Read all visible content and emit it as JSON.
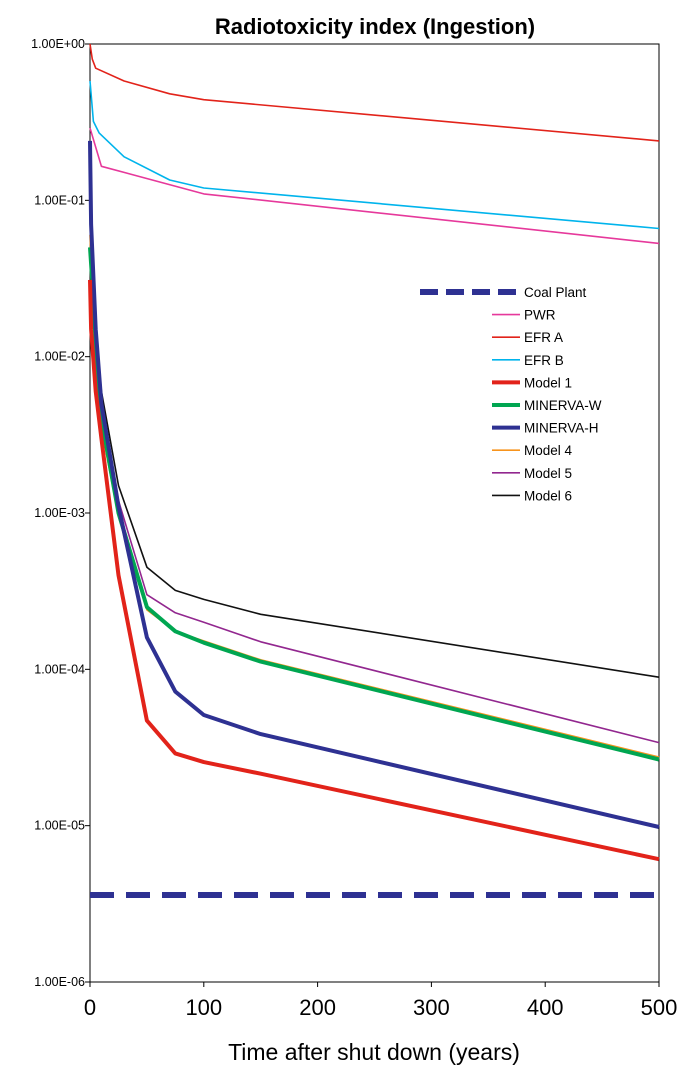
{
  "chart_data": {
    "type": "line",
    "title": "Radiotoxicity index (Ingestion)",
    "xlabel": "Time after shut down (years)",
    "ylabel": "",
    "y_scale": "log",
    "xlim": [
      0,
      500
    ],
    "ylim": [
      1e-06,
      1
    ],
    "x_ticks": [
      0,
      100,
      200,
      300,
      400,
      500
    ],
    "y_ticks": [
      1,
      0.1,
      0.01,
      0.001,
      0.0001,
      1e-05,
      1e-06
    ],
    "y_tick_labels": [
      "1.00E+00",
      "1.00E-01",
      "1.00E-02",
      "1.00E-03",
      "1.00E-04",
      "1.00E-05",
      "1.00E-06"
    ],
    "grid": false,
    "legend_position": "right",
    "series": [
      {
        "name": "Coal Plant",
        "color": "#2E3192",
        "style": "dashed-thick",
        "x": [
          0,
          500
        ],
        "y": [
          3.6e-06,
          3.6e-06
        ]
      },
      {
        "name": "PWR",
        "color": "#E6399B",
        "style": "thin",
        "x": [
          0,
          10,
          100,
          500
        ],
        "y": [
          0.29,
          0.165,
          0.11,
          0.053
        ]
      },
      {
        "name": "EFR A",
        "color": "#E2231A",
        "style": "thin",
        "x": [
          0,
          2,
          5,
          30,
          70,
          100,
          500
        ],
        "y": [
          1.0,
          0.8,
          0.7,
          0.58,
          0.48,
          0.44,
          0.24
        ]
      },
      {
        "name": "EFR B",
        "color": "#00B4EC",
        "style": "thin",
        "x": [
          0,
          3,
          8,
          30,
          70,
          100,
          500
        ],
        "y": [
          0.58,
          0.32,
          0.27,
          0.19,
          0.135,
          0.12,
          0.066
        ]
      },
      {
        "name": "Model 1",
        "color": "#E2231A",
        "style": "thick",
        "x": [
          0,
          1,
          5,
          10,
          25,
          50,
          75,
          100,
          150,
          500
        ],
        "y": [
          0.031,
          0.015,
          0.006,
          0.003,
          0.0004,
          4.7e-05,
          2.9e-05,
          2.55e-05,
          2.15e-05,
          6.1e-06
        ]
      },
      {
        "name": "MINERVA-W",
        "color": "#00A651",
        "style": "thick",
        "x": [
          0,
          2,
          5,
          10,
          25,
          50,
          75,
          100,
          150,
          500
        ],
        "y": [
          0.05,
          0.03,
          0.012,
          0.004,
          0.001,
          0.00025,
          0.000175,
          0.000148,
          0.000112,
          2.65e-05
        ]
      },
      {
        "name": "MINERVA-H",
        "color": "#2E3192",
        "style": "thick",
        "x": [
          0,
          1,
          5,
          10,
          25,
          50,
          75,
          100,
          150,
          500
        ],
        "y": [
          0.24,
          0.07,
          0.015,
          0.005,
          0.0011,
          0.00016,
          7.2e-05,
          5.1e-05,
          3.85e-05,
          9.8e-06
        ]
      },
      {
        "name": "Model 4",
        "color": "#F7941D",
        "style": "thin",
        "x": [
          0,
          2,
          5,
          10,
          25,
          50,
          75,
          100,
          150,
          500
        ],
        "y": [
          0.06,
          0.025,
          0.01,
          0.0035,
          0.00095,
          0.00024,
          0.000175,
          0.000152,
          0.000115,
          2.75e-05
        ]
      },
      {
        "name": "Model 5",
        "color": "#92278F",
        "style": "thin",
        "x": [
          0,
          2,
          5,
          10,
          25,
          50,
          75,
          100,
          150,
          500
        ],
        "y": [
          0.1,
          0.04,
          0.015,
          0.005,
          0.0012,
          0.0003,
          0.00023,
          0.0002,
          0.00015,
          3.4e-05
        ]
      },
      {
        "name": "Model 6",
        "color": "#111111",
        "style": "thin",
        "x": [
          0,
          2,
          5,
          10,
          25,
          50,
          75,
          100,
          150,
          500
        ],
        "y": [
          0.085,
          0.03,
          0.015,
          0.006,
          0.0015,
          0.00045,
          0.00032,
          0.00028,
          0.000225,
          8.9e-05
        ]
      }
    ]
  }
}
